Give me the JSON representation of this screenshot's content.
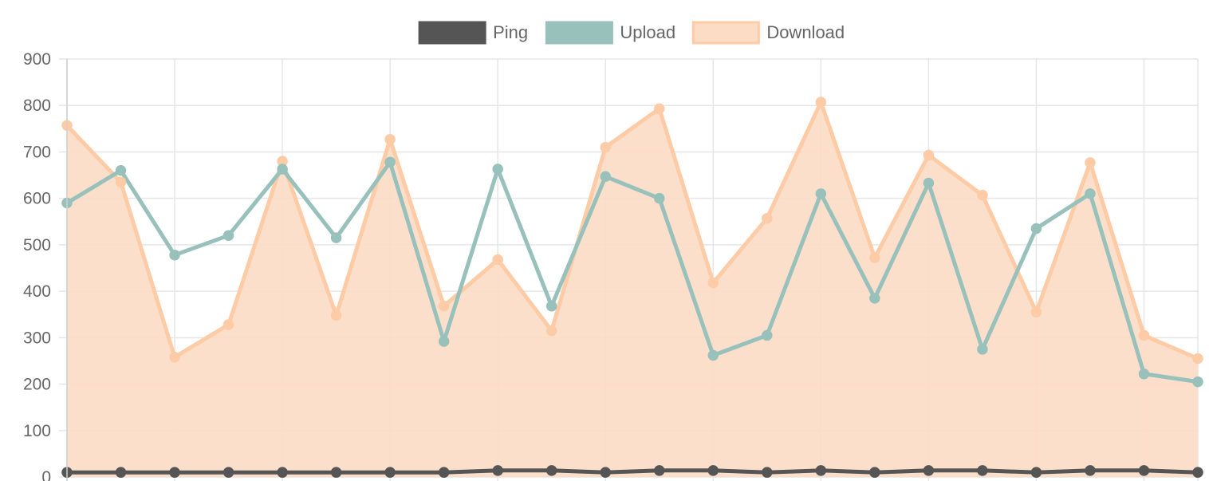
{
  "chart_data": {
    "type": "line",
    "x": [
      "",
      "",
      "",
      "",
      "",
      "",
      "",
      "",
      "",
      "",
      "",
      "",
      "",
      "",
      "",
      "",
      "",
      "",
      "",
      "",
      "",
      ""
    ],
    "series": [
      {
        "name": "Ping",
        "color": "#555555",
        "fill": false,
        "values": [
          10,
          10,
          10,
          10,
          10,
          10,
          10,
          10,
          14,
          14,
          10,
          14,
          14,
          10,
          14,
          10,
          14,
          14,
          10,
          14,
          14,
          10
        ]
      },
      {
        "name": "Upload",
        "color": "#98c1bb",
        "fill": false,
        "values": [
          590,
          660,
          478,
          520,
          663,
          515,
          678,
          292,
          663,
          368,
          647,
          600,
          262,
          305,
          610,
          385,
          633,
          275,
          535,
          610,
          222,
          205
        ]
      },
      {
        "name": "Download",
        "color": "#fdcba6",
        "fill": true,
        "fill_color": "#fcdcc4",
        "values": [
          757,
          635,
          258,
          328,
          680,
          348,
          727,
          368,
          468,
          315,
          710,
          793,
          418,
          557,
          807,
          472,
          693,
          607,
          355,
          677,
          305,
          255
        ]
      }
    ],
    "ylim": [
      0,
      900
    ],
    "yticks": [
      "0",
      "100",
      "200",
      "300",
      "400",
      "500",
      "600",
      "700",
      "800",
      "900"
    ],
    "grid": true,
    "legend_position": "top",
    "title": "",
    "xlabel": "",
    "ylabel": ""
  }
}
